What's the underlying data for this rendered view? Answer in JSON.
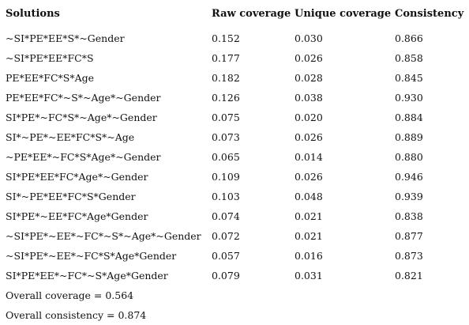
{
  "headers": {
    "solutions": "Solutions",
    "raw": "Raw coverage",
    "unique": "Unique coverage",
    "consistency": "Consistency"
  },
  "rows": [
    {
      "solution": "~SI*PE*EE*S*~Gender",
      "raw": "0.152",
      "unique": "0.030",
      "consistency": "0.866"
    },
    {
      "solution": "~SI*PE*EE*FC*S",
      "raw": "0.177",
      "unique": "0.026",
      "consistency": "0.858"
    },
    {
      "solution": "PE*EE*FC*S*Age",
      "raw": "0.182",
      "unique": "0.028",
      "consistency": "0.845"
    },
    {
      "solution": "PE*EE*FC*~S*~Age*~Gender",
      "raw": "0.126",
      "unique": "0.038",
      "consistency": "0.930"
    },
    {
      "solution": "SI*PE*~FC*S*~Age*~Gender",
      "raw": "0.075",
      "unique": "0.020",
      "consistency": "0.884"
    },
    {
      "solution": "SI*~PE*~EE*FC*S*~Age",
      "raw": "0.073",
      "unique": "0.026",
      "consistency": "0.889"
    },
    {
      "solution": "~PE*EE*~FC*S*Age*~Gender",
      "raw": "0.065",
      "unique": "0.014",
      "consistency": "0.880"
    },
    {
      "solution": "SI*PE*EE*FC*Age*~Gender",
      "raw": "0.109",
      "unique": "0.026",
      "consistency": "0.946"
    },
    {
      "solution": "SI*~PE*EE*FC*S*Gender",
      "raw": "0.103",
      "unique": "0.048",
      "consistency": "0.939"
    },
    {
      "solution": "SI*PE*~EE*FC*Age*Gender",
      "raw": "0.074",
      "unique": "0.021",
      "consistency": "0.838"
    },
    {
      "solution": "~SI*PE*~EE*~FC*~S*~Age*~Gender",
      "raw": "0.072",
      "unique": "0.021",
      "consistency": "0.877"
    },
    {
      "solution": "~SI*PE*~EE*~FC*S*Age*Gender",
      "raw": "0.057",
      "unique": "0.016",
      "consistency": "0.873"
    },
    {
      "solution": "SI*PE*EE*~FC*~S*Age*Gender",
      "raw": "0.079",
      "unique": "0.031",
      "consistency": "0.821"
    }
  ],
  "footer": {
    "overall_coverage": "Overall coverage = 0.564",
    "overall_consistency": "Overall consistency = 0.874"
  }
}
